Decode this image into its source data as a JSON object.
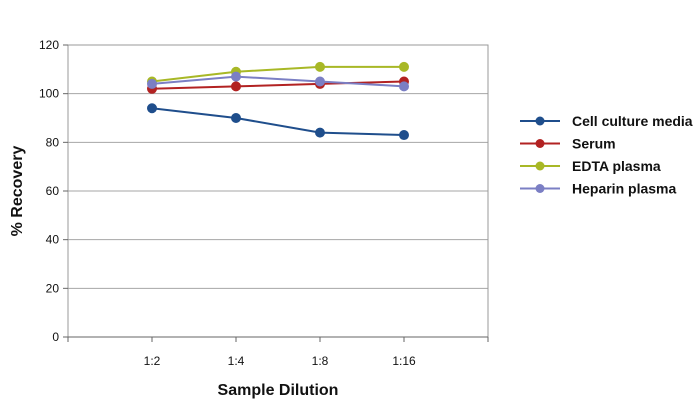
{
  "chart_data": {
    "type": "line",
    "xlabel": "Sample Dilution",
    "ylabel": "% Recovery",
    "categories": [
      "1:2",
      "1:4",
      "1:8",
      "1:16"
    ],
    "ylim": [
      0,
      120
    ],
    "yticks": [
      0,
      20,
      40,
      60,
      80,
      100,
      120
    ],
    "grid": "horizontal",
    "legend_position": "right",
    "series": [
      {
        "name": "Cell culture media",
        "color": "#1f4e8c",
        "values": [
          94,
          90,
          84,
          83
        ]
      },
      {
        "name": "Serum",
        "color": "#b22222",
        "values": [
          102,
          103,
          104,
          105
        ]
      },
      {
        "name": "EDTA plasma",
        "color": "#a8b826",
        "values": [
          105,
          109,
          111,
          111
        ]
      },
      {
        "name": "Heparin plasma",
        "color": "#7b7fc4",
        "values": [
          104,
          107,
          105,
          103
        ]
      }
    ]
  }
}
